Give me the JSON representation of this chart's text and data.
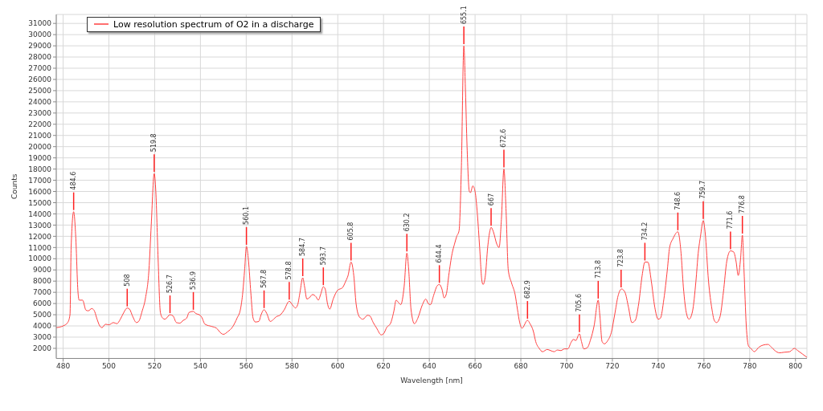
{
  "chart_data": {
    "type": "line",
    "xlabel": "Wavelength [nm]",
    "ylabel": "Counts",
    "xlim": [
      477,
      805
    ],
    "ylim": [
      1100,
      31800
    ],
    "xticks": [
      480,
      500,
      520,
      540,
      560,
      580,
      600,
      620,
      640,
      660,
      680,
      700,
      720,
      740,
      760,
      780,
      800
    ],
    "yticks": [
      2000,
      3000,
      4000,
      5000,
      6000,
      7000,
      8000,
      9000,
      10000,
      11000,
      12000,
      13000,
      14000,
      15000,
      16000,
      17000,
      18000,
      19000,
      20000,
      21000,
      22000,
      23000,
      24000,
      25000,
      26000,
      27000,
      28000,
      29000,
      30000,
      31000
    ],
    "grid": true,
    "legend": "top left",
    "marker": "none",
    "x": [
      477,
      480,
      482,
      483,
      483.5,
      484.6,
      485.5,
      486.5,
      487,
      488.5,
      490,
      491,
      492.5,
      493.5,
      495,
      496,
      497,
      498.5,
      500,
      502,
      503.5,
      505,
      506.5,
      508,
      509,
      510.5,
      512,
      513,
      514.5,
      516,
      517.5,
      518.5,
      519.8,
      520.5,
      521.5,
      522.5,
      523.5,
      524.5,
      526.7,
      528,
      529.5,
      531,
      532.5,
      534,
      535,
      536.9,
      538,
      539.5,
      540.5,
      542,
      545,
      547,
      549,
      550,
      552,
      554,
      556,
      557.5,
      558.5,
      559.3,
      560.1,
      561,
      562,
      563,
      564,
      565.5,
      566.5,
      567.8,
      569,
      570.5,
      572,
      573,
      575,
      576.5,
      578.8,
      580.5,
      581.5,
      582.5,
      583.5,
      584.7,
      585.5,
      586.5,
      587.5,
      589,
      590.5,
      591.5,
      592.5,
      593.7,
      594.5,
      595.5,
      596.5,
      598,
      600,
      602,
      603.5,
      604.5,
      605.8,
      607,
      608,
      609.5,
      611,
      613,
      614,
      615.5,
      617,
      619,
      620,
      621.5,
      623,
      624.5,
      625.5,
      626.5,
      627.5,
      629,
      630.2,
      631,
      632,
      633.5,
      635,
      637,
      638.5,
      639.5,
      640.5,
      642,
      643.5,
      644.4,
      645.5,
      646.5,
      647.5,
      648.5,
      650,
      651,
      652,
      653,
      654,
      655.1,
      655.8,
      656.5,
      657.5,
      658,
      659,
      660,
      661,
      662,
      663,
      663.5,
      664.5,
      665.5,
      666.5,
      667,
      668,
      669.5,
      670.5,
      671.5,
      672.6,
      673.5,
      674.5,
      676,
      677.5,
      678.5,
      679.5,
      680.5,
      682.9,
      684,
      685.5,
      686.5,
      688,
      689.5,
      691.5,
      693,
      694.5,
      696,
      697.5,
      699,
      700.5,
      702,
      703,
      704,
      705.6,
      706.5,
      707.5,
      709,
      710.5,
      712,
      713.8,
      714.5,
      715.5,
      716.5,
      718,
      719.5,
      721,
      722.5,
      724,
      725.5,
      727,
      728.5,
      730,
      731.5,
      733,
      734.2,
      735.5,
      737,
      738.5,
      740,
      741,
      742.5,
      744,
      745,
      746.5,
      748.6,
      750,
      751,
      752.5,
      753.5,
      755,
      756.5,
      757.5,
      758.5,
      759.7,
      760.5,
      762,
      763.5,
      764.5,
      765.5,
      767,
      768.5,
      770,
      771.6,
      773,
      774,
      775,
      776,
      776.8,
      777.5,
      778.5,
      779.5,
      780.5,
      782,
      784,
      786,
      788,
      789.5,
      791,
      793,
      795,
      797.5,
      799.5,
      801,
      803,
      805
    ],
    "series": [
      {
        "name": "Low resolution spectrum of O2 in a discharge",
        "color": "#ff4040",
        "values": [
          3850,
          4000,
          4300,
          5000,
          11000,
          14200,
          12000,
          7000,
          6300,
          6300,
          5400,
          5350,
          5550,
          5400,
          4500,
          4000,
          3850,
          4150,
          4100,
          4300,
          4200,
          4600,
          5200,
          5600,
          5500,
          4800,
          4300,
          4400,
          5300,
          6500,
          9000,
          13000,
          17600,
          16000,
          10000,
          5200,
          4700,
          4600,
          5000,
          4900,
          4300,
          4250,
          4500,
          4700,
          5200,
          5300,
          5100,
          5000,
          4800,
          4150,
          3950,
          3800,
          3350,
          3250,
          3500,
          3900,
          4700,
          5500,
          7000,
          9000,
          11100,
          9800,
          7000,
          4700,
          4350,
          4400,
          5000,
          5450,
          5100,
          4400,
          4600,
          4800,
          5000,
          5400,
          6200,
          5800,
          5600,
          5900,
          7000,
          8300,
          7500,
          6400,
          6500,
          6800,
          6600,
          6300,
          6800,
          7500,
          7300,
          6000,
          5500,
          6400,
          7200,
          7400,
          8000,
          8500,
          9700,
          8500,
          6000,
          4800,
          4600,
          4950,
          4900,
          4300,
          3800,
          3200,
          3300,
          3900,
          4200,
          5300,
          6300,
          6100,
          5900,
          7500,
          10500,
          9000,
          5500,
          4200,
          4700,
          5900,
          6400,
          6000,
          5900,
          6800,
          7600,
          7700,
          7300,
          6500,
          6900,
          8500,
          10500,
          11300,
          12000,
          12500,
          18000,
          29000,
          25000,
          20000,
          16000,
          15900,
          16500,
          16000,
          14000,
          11000,
          8000,
          7700,
          8500,
          11000,
          12500,
          12800,
          12400,
          11300,
          11000,
          13500,
          18000,
          14500,
          9000,
          7800,
          6800,
          5500,
          4300,
          3800,
          4500,
          4200,
          3500,
          2600,
          2000,
          1700,
          1900,
          1800,
          1700,
          1850,
          1800,
          1950,
          1950,
          2550,
          2800,
          2700,
          3300,
          2600,
          1950,
          2050,
          2800,
          4000,
          6300,
          5000,
          2600,
          2400,
          2700,
          3400,
          5000,
          6700,
          7300,
          7000,
          5700,
          4300,
          4500,
          6000,
          8500,
          9700,
          9700,
          8000,
          5700,
          4600,
          4700,
          6400,
          9000,
          11000,
          11800,
          12400,
          10500,
          7500,
          5000,
          4600,
          5300,
          8000,
          10500,
          12000,
          13400,
          12400,
          8000,
          5500,
          4500,
          4300,
          4800,
          7000,
          9800,
          10700,
          10600,
          9800,
          8500,
          10000,
          12100,
          9000,
          4000,
          2200,
          2000,
          1700,
          2100,
          2300,
          2350,
          2100,
          1800,
          1600,
          1650,
          1700,
          2000,
          1800,
          1500,
          1200
        ]
      }
    ],
    "annotations": [
      {
        "text": "484.6",
        "x": 484.6,
        "y": 14200
      },
      {
        "text": "508",
        "x": 508,
        "y": 5600
      },
      {
        "text": "519.8",
        "x": 519.8,
        "y": 17600
      },
      {
        "text": "526.7",
        "x": 526.7,
        "y": 5000
      },
      {
        "text": "536.9",
        "x": 536.9,
        "y": 5300
      },
      {
        "text": "560.1",
        "x": 560.1,
        "y": 11100
      },
      {
        "text": "567.8",
        "x": 567.8,
        "y": 5450
      },
      {
        "text": "578.8",
        "x": 578.8,
        "y": 6200
      },
      {
        "text": "584.7",
        "x": 584.7,
        "y": 8300
      },
      {
        "text": "593.7",
        "x": 593.7,
        "y": 7500
      },
      {
        "text": "605.8",
        "x": 605.8,
        "y": 9700
      },
      {
        "text": "630.2",
        "x": 630.2,
        "y": 10500
      },
      {
        "text": "644.4",
        "x": 644.4,
        "y": 7700
      },
      {
        "text": "655.1",
        "x": 655.1,
        "y": 29000
      },
      {
        "text": "667",
        "x": 667,
        "y": 12800
      },
      {
        "text": "672.6",
        "x": 672.6,
        "y": 18000
      },
      {
        "text": "682.9",
        "x": 682.9,
        "y": 4500
      },
      {
        "text": "705.6",
        "x": 705.6,
        "y": 3300
      },
      {
        "text": "713.8",
        "x": 713.8,
        "y": 6300
      },
      {
        "text": "723.8",
        "x": 723.8,
        "y": 7300
      },
      {
        "text": "734.2",
        "x": 734.2,
        "y": 9700
      },
      {
        "text": "748.6",
        "x": 748.6,
        "y": 12400
      },
      {
        "text": "759.7",
        "x": 759.7,
        "y": 13400
      },
      {
        "text": "771.6",
        "x": 771.6,
        "y": 10700
      },
      {
        "text": "776.8",
        "x": 776.8,
        "y": 12100
      }
    ]
  }
}
